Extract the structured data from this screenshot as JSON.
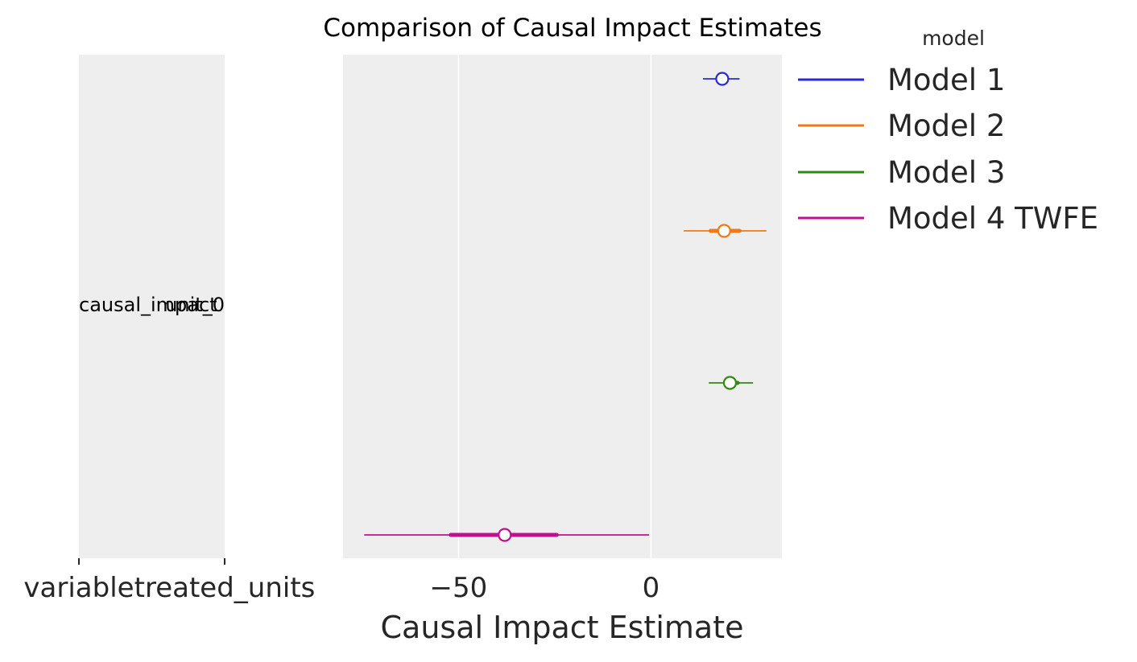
{
  "chart_data": {
    "type": "forest",
    "title": "Comparison of Causal Impact Estimates",
    "xlabel": "Causal Impact Estimate",
    "xlim": [
      -80,
      34
    ],
    "x_ticks": [
      -50,
      0
    ],
    "x_tick_labels": [
      "−50",
      "0"
    ],
    "grid": true,
    "label_columns": [
      "variable",
      "treated_units"
    ],
    "row_labels": [
      "causal_impact",
      "unit_0"
    ],
    "legend": {
      "title": "model",
      "position": "upper right outside"
    },
    "series": [
      {
        "name": "Model 1",
        "color": "#2a2ad8",
        "mean": 18.5,
        "hdi_inner": [
          17.5,
          19.5
        ],
        "hdi_outer": [
          13.5,
          23
        ]
      },
      {
        "name": "Model 2",
        "color": "#f07a18",
        "mean": 19,
        "hdi_inner": [
          15.5,
          23
        ],
        "hdi_outer": [
          8.5,
          30
        ]
      },
      {
        "name": "Model 3",
        "color": "#2f8a12",
        "mean": 20.5,
        "hdi_inner": [
          19.5,
          22.5
        ],
        "hdi_outer": [
          15,
          26.5
        ]
      },
      {
        "name": "Model 4 TWFE",
        "color": "#c0108f",
        "mean": -38,
        "hdi_inner": [
          -52,
          -24.5
        ],
        "hdi_outer": [
          -74.5,
          -0.5
        ]
      }
    ]
  }
}
